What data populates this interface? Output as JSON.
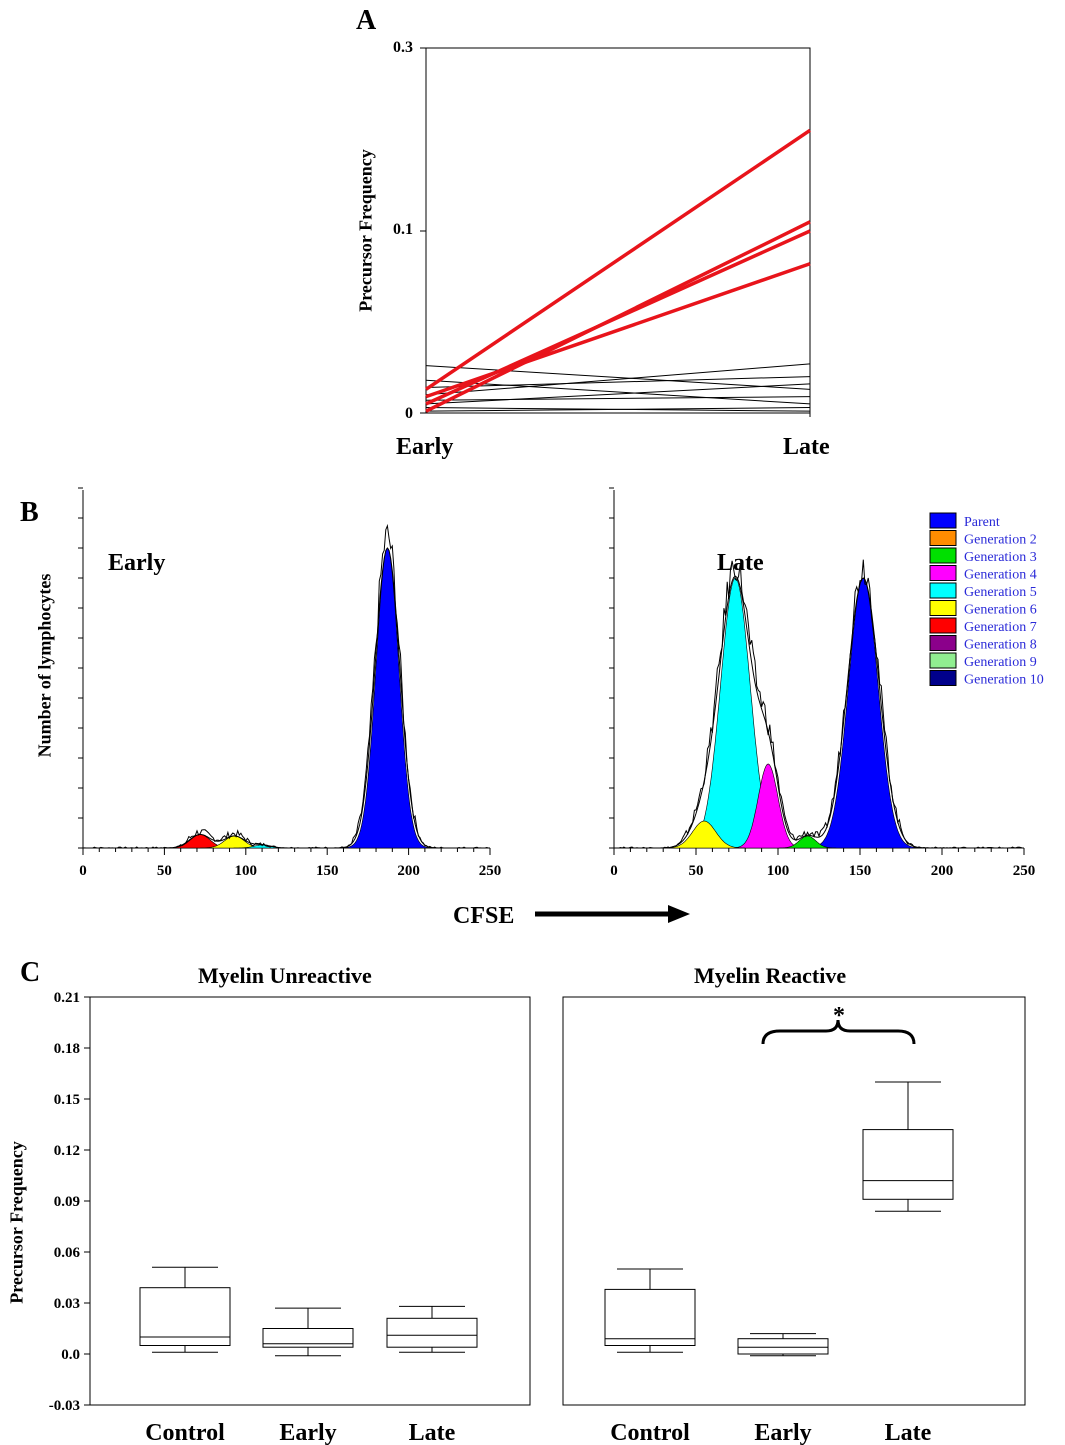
{
  "panels": {
    "a": "A",
    "b": "B",
    "c": "C"
  },
  "cfse_label": "CFSE",
  "chart_data": [
    {
      "id": "A",
      "type": "line",
      "ylabel": "Precursor Frequency",
      "categories": [
        "Early",
        "Late"
      ],
      "y_ticks": [
        "0",
        "0.1",
        "0.3"
      ],
      "y_scale": "nonlinear (0, 0.1, 0.3 marked)",
      "colors": {
        "reactive": "#e8141b",
        "unreactive": "#000000"
      },
      "series_reactive": [
        {
          "early": 0.013,
          "late": 0.21
        },
        {
          "early": 0.001,
          "late": 0.11
        },
        {
          "early": 0.005,
          "late": 0.1
        },
        {
          "early": 0.009,
          "late": 0.082
        }
      ],
      "series_unreactive": [
        {
          "early": 0.026,
          "late": 0.013
        },
        {
          "early": 0.018,
          "late": 0.005
        },
        {
          "early": 0.014,
          "late": 0.02
        },
        {
          "early": 0.01,
          "late": 0.027
        },
        {
          "early": 0.007,
          "late": 0.009
        },
        {
          "early": 0.005,
          "late": 0.016
        },
        {
          "early": 0.003,
          "late": 0.001
        },
        {
          "early": 0.001,
          "late": 0.003
        }
      ]
    },
    {
      "id": "B",
      "type": "area",
      "ylabel": "Number of lymphocytes",
      "x_ticks": [
        0,
        50,
        100,
        150,
        200,
        250
      ],
      "xlim": [
        0,
        250
      ],
      "subplots": [
        {
          "label": "Early",
          "peaks": [
            {
              "generation": "Parent",
              "center": 187,
              "height": 1.0,
              "width": 7
            },
            {
              "generation": "Generation 7",
              "center": 72,
              "height": 0.045,
              "width": 6
            },
            {
              "generation": "Generation 6",
              "center": 93,
              "height": 0.04,
              "width": 6
            },
            {
              "generation": "Generation 5",
              "center": 110,
              "height": 0.01,
              "width": 5
            }
          ]
        },
        {
          "label": "Late",
          "peaks": [
            {
              "generation": "Parent",
              "center": 152,
              "height": 0.9,
              "width": 9
            },
            {
              "generation": "Generation 5",
              "center": 74,
              "height": 0.9,
              "width": 9
            },
            {
              "generation": "Generation 4",
              "center": 94,
              "height": 0.28,
              "width": 6
            },
            {
              "generation": "Generation 6",
              "center": 55,
              "height": 0.09,
              "width": 7
            },
            {
              "generation": "Generation 3",
              "center": 118,
              "height": 0.04,
              "width": 5
            }
          ]
        }
      ],
      "legend": [
        {
          "name": "Parent",
          "color": "#0000ff"
        },
        {
          "name": "Generation 2",
          "color": "#ff8c00"
        },
        {
          "name": "Generation 3",
          "color": "#00e000"
        },
        {
          "name": "Generation 4",
          "color": "#ff00ff"
        },
        {
          "name": "Generation 5",
          "color": "#00ffff"
        },
        {
          "name": "Generation 6",
          "color": "#ffff00"
        },
        {
          "name": "Generation 7",
          "color": "#ff0000"
        },
        {
          "name": "Generation 8",
          "color": "#8b008b"
        },
        {
          "name": "Generation 9",
          "color": "#90ee90"
        },
        {
          "name": "Generation 10",
          "color": "#00008b"
        }
      ]
    },
    {
      "id": "C",
      "type": "box",
      "ylabel": "Precursor Frequency",
      "ylim": [
        -0.03,
        0.21
      ],
      "y_ticks": [
        "0.21",
        "0.18",
        "0.15",
        "0.12",
        "0.09",
        "0.06",
        "0.03",
        "0.0",
        "-0.03"
      ],
      "categories": [
        "Control",
        "Early",
        "Late"
      ],
      "subplots": [
        {
          "title": "Myelin Unreactive",
          "boxes": [
            {
              "category": "Control",
              "min": 0.001,
              "q1": 0.005,
              "median": 0.01,
              "q3": 0.039,
              "max": 0.051
            },
            {
              "category": "Early",
              "min": -0.001,
              "q1": 0.004,
              "median": 0.006,
              "q3": 0.015,
              "max": 0.027
            },
            {
              "category": "Late",
              "min": 0.001,
              "q1": 0.004,
              "median": 0.011,
              "q3": 0.021,
              "max": 0.028
            }
          ]
        },
        {
          "title": "Myelin Reactive",
          "significance": "*",
          "boxes": [
            {
              "category": "Control",
              "min": 0.001,
              "q1": 0.005,
              "median": 0.009,
              "q3": 0.038,
              "max": 0.05
            },
            {
              "category": "Early",
              "min": -0.001,
              "q1": 0.0,
              "median": 0.004,
              "q3": 0.009,
              "max": 0.012
            },
            {
              "category": "Late",
              "min": 0.084,
              "q1": 0.091,
              "median": 0.102,
              "q3": 0.132,
              "max": 0.16
            }
          ]
        }
      ]
    }
  ]
}
